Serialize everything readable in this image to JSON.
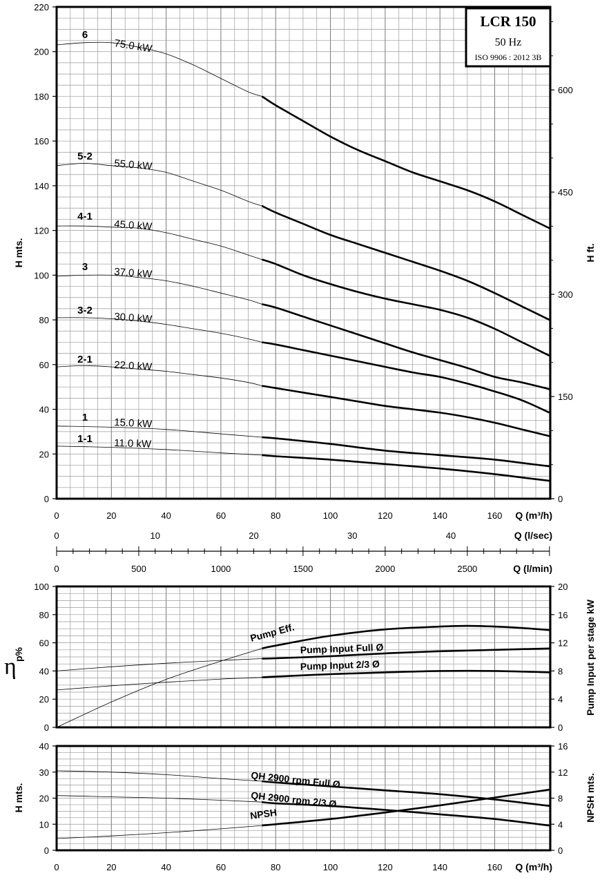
{
  "chart_data": [
    {
      "id": "head",
      "type": "line",
      "title_box": {
        "model": "LCR 150",
        "freq": "50 Hz",
        "standard": "ISO 9906 : 2012 3B"
      },
      "xlabel": "Q (m³/h)",
      "ylabel": "H mts.",
      "ylabel_right": "H ft.",
      "xlim": [
        0,
        180
      ],
      "ylim": [
        0,
        220
      ],
      "x_ticks": [
        "0",
        "20",
        "40",
        "60",
        "80",
        "100",
        "120",
        "140",
        "160"
      ],
      "y_ticks": [
        "0",
        "20",
        "40",
        "60",
        "80",
        "100",
        "120",
        "140",
        "160",
        "180",
        "200",
        "220"
      ],
      "y2_ticks": [
        "0",
        "150",
        "300",
        "450",
        "600"
      ],
      "secondary_axes": [
        {
          "label": "Q (l/sec)",
          "ticks": [
            "0",
            "10",
            "20",
            "30",
            "40"
          ]
        },
        {
          "label": "Q (l/min)",
          "ticks": [
            "0",
            "500",
            "1000",
            "1500",
            "2000",
            "2500"
          ]
        }
      ],
      "series": [
        {
          "name": "6",
          "power": "75.0 kW",
          "x": [
            0,
            10,
            20,
            30,
            40,
            50,
            60,
            70,
            75,
            80,
            90,
            100,
            110,
            120,
            130,
            140,
            150,
            160,
            170,
            180
          ],
          "y": [
            203,
            204,
            204,
            202,
            199,
            194,
            188,
            182,
            180,
            176,
            169,
            162,
            156,
            151,
            146,
            142,
            138,
            133,
            127,
            121
          ],
          "thick_from": 75
        },
        {
          "name": "5-2",
          "power": "55.0 kW",
          "x": [
            0,
            10,
            20,
            30,
            40,
            50,
            60,
            70,
            75,
            80,
            90,
            100,
            110,
            120,
            130,
            140,
            150,
            160,
            170,
            180
          ],
          "y": [
            149,
            150,
            149,
            148,
            146,
            142,
            138,
            133,
            131,
            128,
            123,
            118,
            114,
            110,
            106,
            102,
            97.5,
            92,
            86,
            80
          ],
          "thick_from": 75
        },
        {
          "name": "4-1",
          "power": "45.0 kW",
          "x": [
            0,
            10,
            20,
            30,
            40,
            50,
            60,
            70,
            75,
            80,
            90,
            100,
            110,
            120,
            130,
            140,
            150,
            160,
            170,
            180
          ],
          "y": [
            122,
            122,
            121.5,
            121,
            119,
            116,
            113,
            109,
            107,
            105,
            100,
            96,
            92.5,
            89.5,
            87,
            84.5,
            81,
            76,
            70,
            64
          ],
          "thick_from": 75
        },
        {
          "name": "3",
          "power": "37.0 kW",
          "x": [
            0,
            10,
            20,
            30,
            40,
            50,
            60,
            70,
            75,
            80,
            90,
            100,
            110,
            120,
            130,
            140,
            150,
            160,
            170,
            180
          ],
          "y": [
            99.5,
            100,
            100,
            99,
            97.5,
            95,
            92,
            89,
            87,
            85.5,
            81.5,
            77.5,
            73.5,
            69.5,
            65.5,
            62,
            58.5,
            54.5,
            52,
            49
          ],
          "thick_from": 75
        },
        {
          "name": "3-2",
          "power": "30.0 kW",
          "x": [
            0,
            10,
            20,
            30,
            40,
            50,
            60,
            70,
            75,
            80,
            90,
            100,
            110,
            120,
            130,
            140,
            150,
            160,
            170,
            180
          ],
          "y": [
            81,
            81,
            80.5,
            79.5,
            78,
            76,
            74,
            71.5,
            70,
            69,
            66.5,
            64,
            61.5,
            59,
            56.5,
            54.5,
            51.5,
            48,
            44,
            38.5
          ],
          "thick_from": 75
        },
        {
          "name": "2-1",
          "power": "22.0 kW",
          "x": [
            0,
            10,
            20,
            30,
            40,
            50,
            60,
            70,
            75,
            80,
            90,
            100,
            110,
            120,
            130,
            140,
            150,
            160,
            170,
            180
          ],
          "y": [
            59,
            59.5,
            59,
            58,
            57,
            55.5,
            54,
            52,
            50.5,
            49.5,
            47.5,
            45.5,
            43.5,
            41.5,
            40,
            38.5,
            36.5,
            34,
            31,
            28
          ],
          "thick_from": 75
        },
        {
          "name": "1",
          "power": "15.0 kW",
          "x": [
            0,
            20,
            40,
            60,
            75,
            80,
            100,
            120,
            140,
            160,
            170,
            180
          ],
          "y": [
            32.5,
            32,
            31,
            29,
            27.5,
            27,
            24.5,
            21.5,
            19.5,
            17.5,
            16,
            14.5
          ],
          "thick_from": 75
        },
        {
          "name": "1-1",
          "power": "11.0 kW",
          "x": [
            0,
            20,
            40,
            60,
            75,
            80,
            100,
            120,
            140,
            160,
            170,
            180
          ],
          "y": [
            23.5,
            23,
            22,
            20.5,
            19.5,
            19,
            17.5,
            15.5,
            13.5,
            11,
            9.5,
            8
          ],
          "thick_from": 75
        }
      ]
    },
    {
      "id": "efficiency",
      "type": "line",
      "ylabel": "ηp%",
      "ylabel_right": "Pump Input per stage kW",
      "xlim": [
        0,
        180
      ],
      "ylim": [
        0,
        100
      ],
      "y2lim": [
        0,
        20
      ],
      "y_ticks": [
        "0",
        "20",
        "40",
        "60",
        "80",
        "100"
      ],
      "y2_ticks": [
        "0",
        "4",
        "8",
        "12",
        "16",
        "20"
      ],
      "series": [
        {
          "name": "Pump Eff.",
          "axis": "left",
          "x": [
            0,
            20,
            40,
            60,
            75,
            80,
            100,
            120,
            140,
            150,
            160,
            170,
            180
          ],
          "y": [
            0,
            18,
            34,
            47,
            56,
            58,
            65,
            69.5,
            71.5,
            72,
            71.5,
            70.5,
            69
          ],
          "thick_from": 75
        },
        {
          "name": "Pump Input Full Ø",
          "axis": "right",
          "x": [
            0,
            20,
            40,
            60,
            75,
            80,
            100,
            120,
            140,
            160,
            180
          ],
          "y": [
            8,
            8.6,
            9.1,
            9.5,
            9.75,
            9.8,
            10.1,
            10.5,
            10.8,
            11.0,
            11.2
          ],
          "thick_from": 75
        },
        {
          "name": "Pump Input 2/3 Ø",
          "axis": "right",
          "x": [
            0,
            20,
            40,
            60,
            75,
            80,
            100,
            120,
            140,
            160,
            180
          ],
          "y": [
            5.3,
            5.9,
            6.4,
            6.85,
            7.1,
            7.2,
            7.55,
            7.8,
            8.0,
            8.0,
            7.8
          ],
          "thick_from": 75
        }
      ]
    },
    {
      "id": "npsh",
      "type": "line",
      "xlabel": "Q (m³/h)",
      "ylabel": "H mts.",
      "ylabel_right": "NPSH mts.",
      "xlim": [
        0,
        180
      ],
      "ylim": [
        0,
        40
      ],
      "y2lim": [
        0,
        16
      ],
      "x_ticks": [
        "0",
        "20",
        "40",
        "60",
        "80",
        "100",
        "120",
        "140",
        "160"
      ],
      "y_ticks": [
        "0",
        "10",
        "20",
        "30",
        "40"
      ],
      "y2_ticks": [
        "0",
        "4",
        "8",
        "12",
        "16"
      ],
      "series": [
        {
          "name": "QH 2900 rpm Full Ø",
          "axis": "left",
          "x": [
            0,
            20,
            40,
            60,
            75,
            80,
            100,
            120,
            140,
            160,
            180
          ],
          "y": [
            30.5,
            30,
            29,
            27.5,
            26.5,
            26,
            24.5,
            23,
            21.5,
            19.5,
            17
          ],
          "thick_from": 75
        },
        {
          "name": "QH 2900 rpm 2/3 Ø",
          "axis": "left",
          "x": [
            0,
            20,
            40,
            60,
            75,
            80,
            100,
            120,
            140,
            160,
            180
          ],
          "y": [
            21,
            20.5,
            20,
            19.2,
            18.5,
            18,
            17,
            15.5,
            13.8,
            12,
            9.5
          ],
          "thick_from": 75
        },
        {
          "name": "NPSH",
          "axis": "right",
          "x": [
            0,
            20,
            40,
            60,
            75,
            80,
            100,
            120,
            140,
            160,
            180
          ],
          "y": [
            1.8,
            2.2,
            2.7,
            3.3,
            3.8,
            4.0,
            4.8,
            5.8,
            6.9,
            8.1,
            9.3
          ],
          "thick_from": 75
        }
      ]
    }
  ]
}
